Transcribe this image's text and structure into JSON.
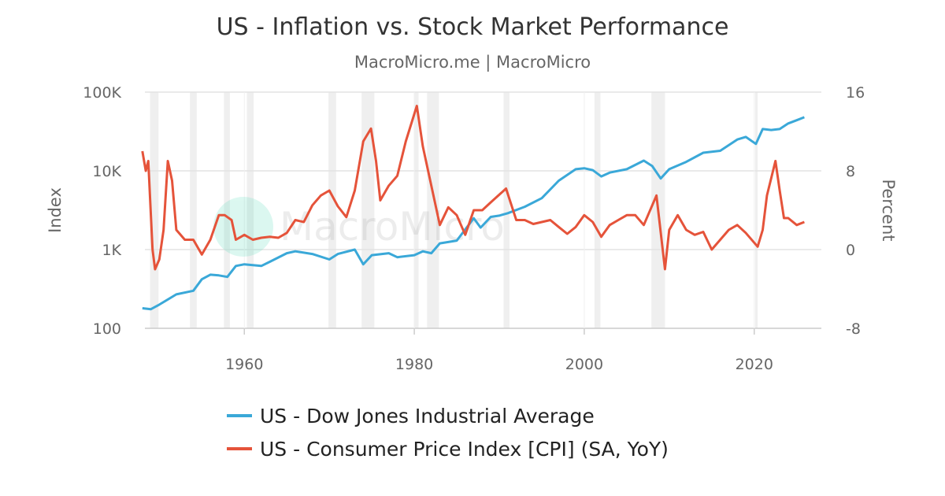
{
  "chart_data": {
    "type": "line",
    "title": "US - Inflation vs. Stock Market Performance",
    "subtitle": "MacroMicro.me | MacroMicro",
    "watermark": "MacroMicro",
    "xlim": [
      1948.3,
      2027.9
    ],
    "x_ticks": [
      1960,
      1980,
      2000,
      2020
    ],
    "y_left": {
      "label": "Index",
      "scale": "log",
      "range": [
        100,
        100000
      ],
      "ticks": [
        {
          "v": 100,
          "t": "100"
        },
        {
          "v": 1000,
          "t": "1K"
        },
        {
          "v": 10000,
          "t": "10K"
        },
        {
          "v": 100000,
          "t": "100K"
        }
      ]
    },
    "y_right": {
      "label": "Percent",
      "scale": "linear",
      "range": [
        -8,
        16
      ],
      "ticks": [
        -8,
        0,
        8,
        16
      ]
    },
    "grid": true,
    "legend": "bottom",
    "recessions": [
      [
        1948.9,
        1949.9
      ],
      [
        1953.6,
        1954.4
      ],
      [
        1957.6,
        1958.3
      ],
      [
        1960.3,
        1961.1
      ],
      [
        1969.9,
        1970.8
      ],
      [
        1973.8,
        1975.3
      ],
      [
        1980.0,
        1980.5
      ],
      [
        1981.5,
        1982.9
      ],
      [
        1990.5,
        1991.2
      ],
      [
        2001.2,
        2001.9
      ],
      [
        2007.9,
        2009.5
      ],
      [
        2020.1,
        2020.4
      ]
    ],
    "series": [
      {
        "name": "US - Dow Jones Industrial Average",
        "axis": "left",
        "color": "#3aa8d8",
        "x": [
          1948,
          1949,
          1950,
          1952,
          1954,
          1955,
          1956,
          1957,
          1958,
          1959,
          1960,
          1962,
          1963,
          1965,
          1966,
          1968,
          1970,
          1971,
          1973,
          1974,
          1975,
          1977,
          1978,
          1980,
          1981,
          1982,
          1983,
          1985,
          1987,
          1987.8,
          1989,
          1990,
          1991,
          1993,
          1995,
          1997,
          1999,
          2000,
          2001,
          2002,
          2003,
          2005,
          2007,
          2008,
          2009,
          2010,
          2012,
          2014,
          2016,
          2018,
          2019,
          2020.2,
          2021,
          2022,
          2023,
          2024,
          2025,
          2025.9
        ],
        "y": [
          180,
          175,
          200,
          270,
          300,
          420,
          480,
          470,
          450,
          620,
          650,
          620,
          700,
          900,
          950,
          880,
          750,
          880,
          1000,
          650,
          850,
          900,
          800,
          850,
          950,
          900,
          1200,
          1300,
          2500,
          1900,
          2600,
          2700,
          2900,
          3500,
          4500,
          7500,
          10500,
          10800,
          10200,
          8500,
          9500,
          10500,
          13500,
          11500,
          8000,
          10500,
          13000,
          17000,
          18000,
          25000,
          27000,
          22000,
          34000,
          33000,
          34000,
          40000,
          44000,
          48000
        ]
      },
      {
        "name": "US - Consumer Price Index [CPI] (SA, YoY)",
        "axis": "right",
        "color": "#e5533a",
        "x": [
          1948,
          1948.4,
          1948.7,
          1949.2,
          1949.5,
          1950,
          1950.5,
          1951,
          1951.5,
          1952,
          1953,
          1954,
          1955,
          1956,
          1957,
          1957.7,
          1958.5,
          1959,
          1960,
          1961,
          1962,
          1963,
          1964,
          1965,
          1966,
          1967,
          1968,
          1969,
          1970,
          1971,
          1972,
          1973,
          1974,
          1974.9,
          1975.5,
          1976,
          1977,
          1978,
          1979,
          1980.3,
          1981,
          1982,
          1983,
          1984,
          1985,
          1986,
          1987,
          1988,
          1989,
          1990.8,
          1992,
          1993,
          1994,
          1995,
          1996,
          1997,
          1998,
          1999,
          2000,
          2001,
          2002,
          2003,
          2004,
          2005,
          2006,
          2007,
          2008.5,
          2009.5,
          2010,
          2011,
          2012,
          2013,
          2014,
          2015,
          2016,
          2017,
          2018,
          2019,
          2020.4,
          2021,
          2021.5,
          2022.5,
          2023,
          2023.5,
          2024,
          2025,
          2025.9
        ],
        "y": [
          10,
          8,
          9,
          0,
          -2,
          -1,
          2,
          9,
          7,
          2,
          1,
          1,
          -0.5,
          1,
          3.5,
          3.5,
          3,
          1,
          1.5,
          1,
          1.2,
          1.3,
          1.2,
          1.7,
          3,
          2.8,
          4.5,
          5.5,
          6,
          4.4,
          3.3,
          6,
          11,
          12.3,
          9,
          5,
          6.5,
          7.5,
          11,
          14.6,
          10.5,
          6.5,
          2.5,
          4.3,
          3.5,
          1.5,
          4,
          4,
          4.8,
          6.2,
          3,
          3,
          2.6,
          2.8,
          3,
          2.3,
          1.6,
          2.3,
          3.5,
          2.8,
          1.3,
          2.5,
          3,
          3.5,
          3.5,
          2.5,
          5.5,
          -2,
          2,
          3.5,
          2,
          1.5,
          1.8,
          0,
          1,
          2,
          2.5,
          1.7,
          0.3,
          2,
          5.5,
          9,
          6,
          3.2,
          3.2,
          2.5,
          2.8
        ]
      }
    ]
  }
}
